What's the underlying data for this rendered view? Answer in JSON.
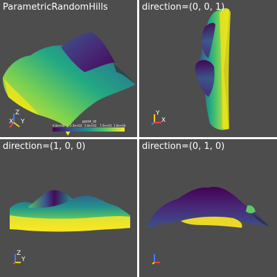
{
  "viewports": [
    {
      "title": "ParametricRandomHills"
    },
    {
      "title": "direction=(0, 0, 1)"
    },
    {
      "title": "direction=(1, 0, 0)"
    },
    {
      "title": "direction=(0, 1, 0)"
    }
  ],
  "axes": {
    "iso": {
      "x": "X",
      "y": "Y",
      "z": "Z"
    },
    "top": {
      "x": "X",
      "y": "Y"
    },
    "side": {
      "y": "Y",
      "z": "Z"
    }
  },
  "colorbar": {
    "title": "point_id",
    "ticks": [
      "0.0e+00",
      "2.5e+03",
      "5.0e+03",
      "7.5e+03",
      "1.0e+04"
    ],
    "colors": [
      "#440154",
      "#3b528b",
      "#21918c",
      "#5ec962",
      "#fde725"
    ]
  },
  "axis_colors": {
    "x": "#ff4040",
    "y": "#ffd700",
    "z": "#3f7fff"
  },
  "background": "#4d4d4d"
}
